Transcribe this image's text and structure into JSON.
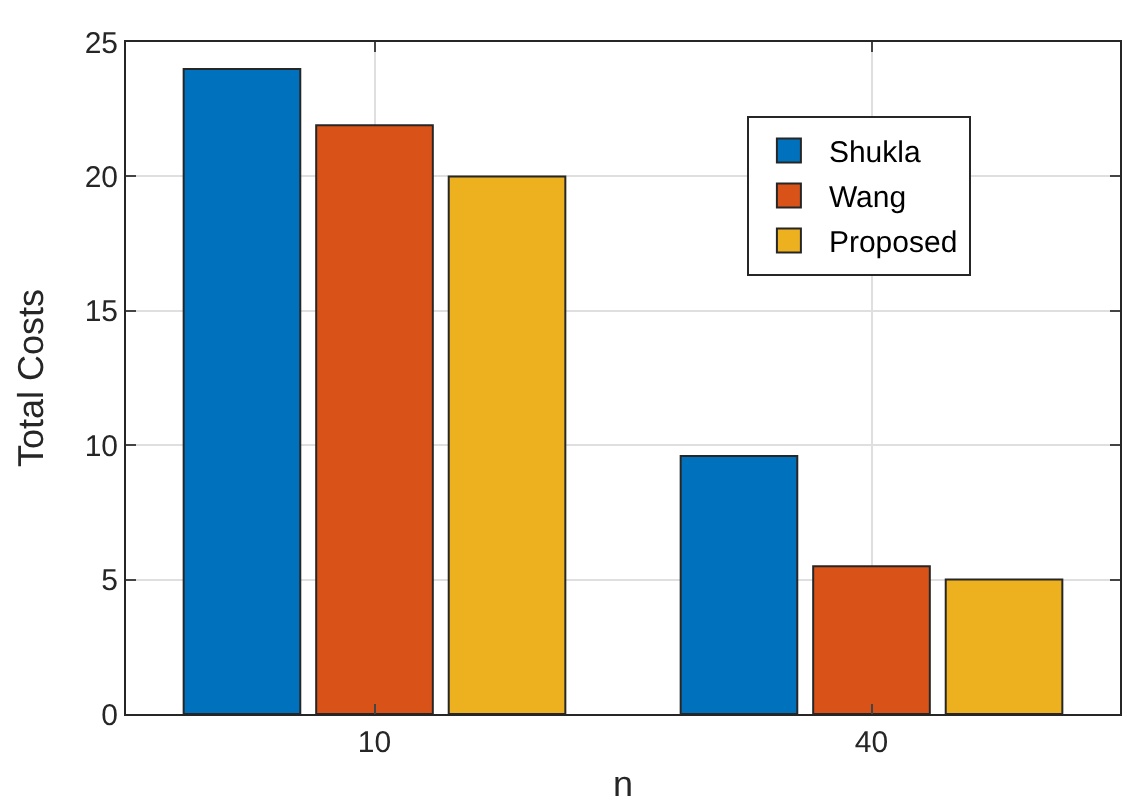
{
  "chart_data": {
    "type": "bar",
    "xlabel": "n",
    "ylabel": "Total Costs",
    "categories": [
      "10",
      "40"
    ],
    "series": [
      {
        "name": "Shukla",
        "color": "#0072bd",
        "values": [
          24,
          9.6
        ]
      },
      {
        "name": "Wang",
        "color": "#d95319",
        "values": [
          21.9,
          5.5
        ]
      },
      {
        "name": "Proposed",
        "color": "#edb120",
        "values": [
          20,
          5
        ]
      }
    ],
    "ylim": [
      0,
      25
    ],
    "yticks": [
      0,
      5,
      10,
      15,
      20,
      25
    ],
    "grid": true,
    "legend": "top right"
  }
}
